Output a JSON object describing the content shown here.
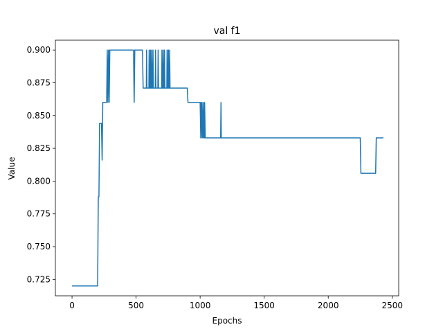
{
  "chart_data": {
    "type": "line",
    "title": "val f1",
    "xlabel": "Epochs",
    "ylabel": "Value",
    "xlim": [
      -130,
      2550
    ],
    "ylim": [
      0.7125,
      0.9075
    ],
    "xticks": [
      0,
      500,
      1000,
      1500,
      2000,
      2500
    ],
    "xtick_labels": [
      "0",
      "500",
      "1000",
      "1500",
      "2000",
      "2500"
    ],
    "yticks": [
      0.725,
      0.75,
      0.775,
      0.8,
      0.825,
      0.85,
      0.875,
      0.9
    ],
    "ytick_labels": [
      "0.725",
      "0.750",
      "0.775",
      "0.800",
      "0.825",
      "0.850",
      "0.875",
      "0.900"
    ],
    "grid": false,
    "line_color": "#1f77b4",
    "series": [
      {
        "x": [
          0,
          200,
          205,
          210,
          215,
          220,
          225,
          230,
          235,
          240,
          245,
          250,
          260,
          270,
          275,
          280,
          285,
          290,
          295,
          300,
          310,
          320,
          480,
          485,
          490,
          495,
          500,
          550,
          555,
          560,
          570,
          580,
          582,
          585,
          590,
          595,
          600,
          602,
          605,
          610,
          612,
          615,
          620,
          622,
          625,
          630,
          632,
          635,
          650,
          652,
          655,
          670,
          672,
          675,
          690,
          700,
          702,
          705,
          710,
          712,
          715,
          720,
          722,
          725,
          730,
          735,
          740,
          742,
          745,
          750,
          752,
          755,
          760,
          762,
          765,
          770,
          775,
          900,
          905,
          1000,
          1005,
          1008,
          1010,
          1015,
          1020,
          1022,
          1025,
          1030,
          1033,
          1035,
          1040,
          1045,
          1160,
          1163,
          1165,
          1170,
          2250,
          2255,
          2370,
          2375,
          2430
        ],
        "y": [
          0.72,
          0.72,
          0.788,
          0.788,
          0.844,
          0.844,
          0.844,
          0.844,
          0.816,
          0.86,
          0.86,
          0.86,
          0.86,
          0.86,
          0.9,
          0.86,
          0.9,
          0.86,
          0.9,
          0.9,
          0.9,
          0.9,
          0.9,
          0.86,
          0.9,
          0.9,
          0.9,
          0.9,
          0.871,
          0.871,
          0.871,
          0.871,
          0.9,
          0.871,
          0.871,
          0.871,
          0.871,
          0.9,
          0.871,
          0.871,
          0.9,
          0.871,
          0.871,
          0.9,
          0.871,
          0.871,
          0.9,
          0.871,
          0.871,
          0.9,
          0.871,
          0.871,
          0.9,
          0.871,
          0.871,
          0.871,
          0.9,
          0.871,
          0.871,
          0.9,
          0.871,
          0.871,
          0.9,
          0.871,
          0.871,
          0.871,
          0.871,
          0.9,
          0.871,
          0.871,
          0.9,
          0.871,
          0.871,
          0.9,
          0.871,
          0.871,
          0.871,
          0.871,
          0.86,
          0.86,
          0.833,
          0.86,
          0.833,
          0.86,
          0.833,
          0.833,
          0.86,
          0.833,
          0.833,
          0.86,
          0.833,
          0.833,
          0.833,
          0.86,
          0.833,
          0.833,
          0.833,
          0.806,
          0.806,
          0.833,
          0.833
        ]
      }
    ]
  }
}
